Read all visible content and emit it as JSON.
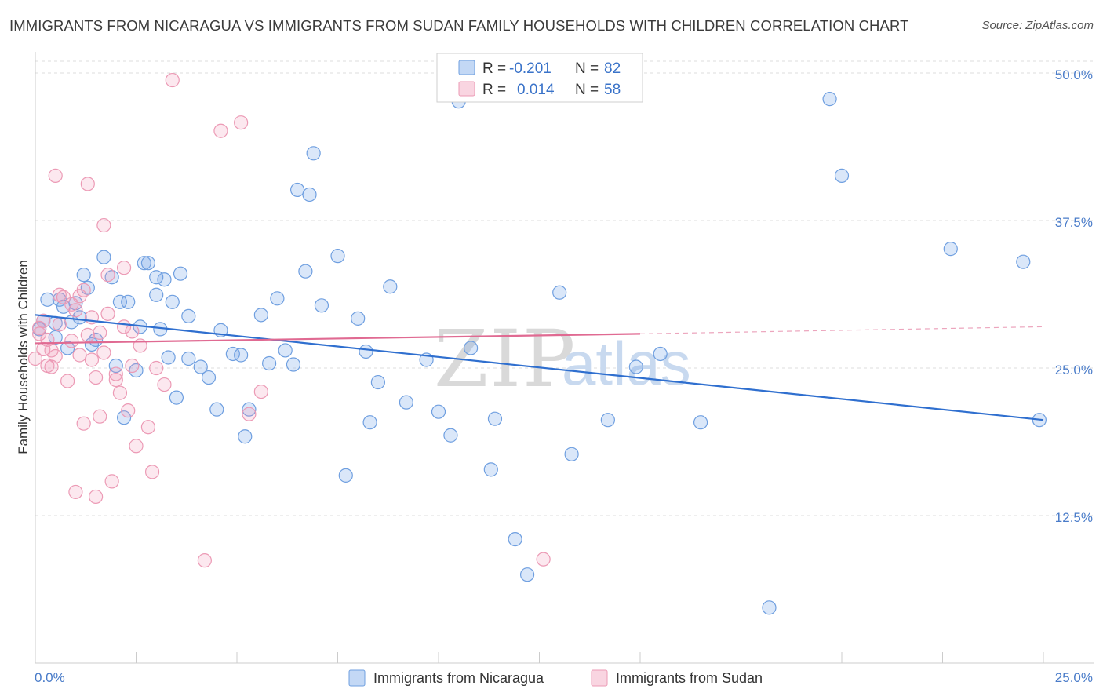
{
  "title": "IMMIGRANTS FROM NICARAGUA VS IMMIGRANTS FROM SUDAN FAMILY HOUSEHOLDS WITH CHILDREN CORRELATION CHART",
  "source": "Source: ZipAtlas.com",
  "watermark": {
    "zip": "ZIP",
    "atlas": "atlas"
  },
  "legend": {
    "r_label": "R =",
    "n_label": "N =",
    "rows": [
      {
        "r": "-0.201",
        "n": "82"
      },
      {
        "r": "0.014",
        "n": "58"
      }
    ]
  },
  "bottom_legend": [
    "Immigrants from Nicaragua",
    "Immigrants from Sudan"
  ],
  "colors": {
    "nicaragua_fill": "rgba(122,168,232,0.28)",
    "nicaragua_stroke": "#6f9fe0",
    "nicaragua_line": "#2f6fcf",
    "sudan_fill": "rgba(240,150,180,0.22)",
    "sudan_stroke": "#ec9ab5",
    "sudan_line": "#e06a92",
    "grid": "#dddddd",
    "tick_text": "#4a7cc9"
  },
  "chart_data": {
    "type": "scatter",
    "ylabel": "Family Households with Children",
    "xlabel": "",
    "x_tick_labels": [
      "0.0%",
      "25.0%"
    ],
    "y_tick_labels": [
      "12.5%",
      "25.0%",
      "37.5%",
      "50.0%"
    ],
    "y_ticks": [
      12.5,
      25.0,
      37.5,
      50.0
    ],
    "xlim": [
      0,
      25
    ],
    "ylim": [
      0,
      51
    ],
    "grid": "horizontal dashed",
    "series": [
      {
        "name": "Immigrants from Nicaragua",
        "trend": {
          "x": [
            0.0,
            25.0
          ],
          "y": [
            29.5,
            20.6
          ]
        },
        "points": [
          [
            0.1,
            28.3
          ],
          [
            0.2,
            29.0
          ],
          [
            0.3,
            30.8
          ],
          [
            0.5,
            27.6
          ],
          [
            0.6,
            30.8
          ],
          [
            0.7,
            30.2
          ],
          [
            0.5,
            28.8
          ],
          [
            0.8,
            26.7
          ],
          [
            0.9,
            28.9
          ],
          [
            1.0,
            30.5
          ],
          [
            1.1,
            29.3
          ],
          [
            1.2,
            32.9
          ],
          [
            1.3,
            31.8
          ],
          [
            1.4,
            27.0
          ],
          [
            1.5,
            27.4
          ],
          [
            1.7,
            34.4
          ],
          [
            1.9,
            32.7
          ],
          [
            2.1,
            30.6
          ],
          [
            2.3,
            30.6
          ],
          [
            2.6,
            28.5
          ],
          [
            2.7,
            33.9
          ],
          [
            2.8,
            33.9
          ],
          [
            3.0,
            31.2
          ],
          [
            3.2,
            32.5
          ],
          [
            3.4,
            30.6
          ],
          [
            3.6,
            33.0
          ],
          [
            3.8,
            29.4
          ],
          [
            3.0,
            32.7
          ],
          [
            2.0,
            25.2
          ],
          [
            2.2,
            20.8
          ],
          [
            2.5,
            24.8
          ],
          [
            3.1,
            28.3
          ],
          [
            3.3,
            25.9
          ],
          [
            3.5,
            22.5
          ],
          [
            3.8,
            25.8
          ],
          [
            4.1,
            25.1
          ],
          [
            4.3,
            24.2
          ],
          [
            4.5,
            21.5
          ],
          [
            4.6,
            28.2
          ],
          [
            4.9,
            26.2
          ],
          [
            5.1,
            26.1
          ],
          [
            5.2,
            19.2
          ],
          [
            5.3,
            21.5
          ],
          [
            5.6,
            29.5
          ],
          [
            5.8,
            25.4
          ],
          [
            6.0,
            30.9
          ],
          [
            6.2,
            26.5
          ],
          [
            6.4,
            25.3
          ],
          [
            6.7,
            33.2
          ],
          [
            6.8,
            39.7
          ],
          [
            7.1,
            30.3
          ],
          [
            7.5,
            34.5
          ],
          [
            7.7,
            15.9
          ],
          [
            8.0,
            29.2
          ],
          [
            8.2,
            26.4
          ],
          [
            8.3,
            20.4
          ],
          [
            8.5,
            23.8
          ],
          [
            8.8,
            31.9
          ],
          [
            9.2,
            22.1
          ],
          [
            9.7,
            25.7
          ],
          [
            10.0,
            21.3
          ],
          [
            10.3,
            19.3
          ],
          [
            10.5,
            47.6
          ],
          [
            10.8,
            26.7
          ],
          [
            11.3,
            16.4
          ],
          [
            11.4,
            20.7
          ],
          [
            11.9,
            10.5
          ],
          [
            12.2,
            7.5
          ],
          [
            13.0,
            31.4
          ],
          [
            13.3,
            17.7
          ],
          [
            14.2,
            20.6
          ],
          [
            14.9,
            25.1
          ],
          [
            15.5,
            26.2
          ],
          [
            16.5,
            20.4
          ],
          [
            18.2,
            4.7
          ],
          [
            19.7,
            47.8
          ],
          [
            20.0,
            41.3
          ],
          [
            22.7,
            35.1
          ],
          [
            24.5,
            34.0
          ],
          [
            24.9,
            20.6
          ],
          [
            6.5,
            40.1
          ],
          [
            6.9,
            43.2
          ]
        ]
      },
      {
        "name": "Immigrants from Sudan",
        "trend": {
          "x": [
            0.0,
            15.0
          ],
          "y": [
            27.1,
            27.9
          ]
        },
        "trend_dashed": {
          "x": [
            15.0,
            25.0
          ],
          "y": [
            27.9,
            28.5
          ]
        },
        "points": [
          [
            0.0,
            25.8
          ],
          [
            0.1,
            27.9
          ],
          [
            0.2,
            26.6
          ],
          [
            0.3,
            27.4
          ],
          [
            0.4,
            25.1
          ],
          [
            0.5,
            26.0
          ],
          [
            0.6,
            28.7
          ],
          [
            0.7,
            31.0
          ],
          [
            0.8,
            23.9
          ],
          [
            0.9,
            30.4
          ],
          [
            1.0,
            29.9
          ],
          [
            1.1,
            26.1
          ],
          [
            1.2,
            31.6
          ],
          [
            1.3,
            27.8
          ],
          [
            1.4,
            29.3
          ],
          [
            1.5,
            24.2
          ],
          [
            1.6,
            28.0
          ],
          [
            1.7,
            26.3
          ],
          [
            1.8,
            32.9
          ],
          [
            2.0,
            24.0
          ],
          [
            2.1,
            22.9
          ],
          [
            2.2,
            28.5
          ],
          [
            2.3,
            21.4
          ],
          [
            2.4,
            25.2
          ],
          [
            2.5,
            18.4
          ],
          [
            2.6,
            26.9
          ],
          [
            2.8,
            20.0
          ],
          [
            3.0,
            25.0
          ],
          [
            3.2,
            23.6
          ],
          [
            0.5,
            41.3
          ],
          [
            1.3,
            40.6
          ],
          [
            1.7,
            37.1
          ],
          [
            2.2,
            33.5
          ],
          [
            1.9,
            15.4
          ],
          [
            1.0,
            14.5
          ],
          [
            1.5,
            14.1
          ],
          [
            1.6,
            20.9
          ],
          [
            1.2,
            20.3
          ],
          [
            1.8,
            29.6
          ],
          [
            2.9,
            16.2
          ],
          [
            3.4,
            49.4
          ],
          [
            4.6,
            45.1
          ],
          [
            5.1,
            45.8
          ],
          [
            5.3,
            21.1
          ],
          [
            4.2,
            8.7
          ],
          [
            5.6,
            23.0
          ],
          [
            12.6,
            8.8
          ],
          [
            10.2,
            49.2
          ],
          [
            0.2,
            29.0
          ],
          [
            0.3,
            25.2
          ],
          [
            0.6,
            31.2
          ],
          [
            0.9,
            27.3
          ],
          [
            1.1,
            31.1
          ],
          [
            1.4,
            25.7
          ],
          [
            2.0,
            24.5
          ],
          [
            2.4,
            28.1
          ],
          [
            0.1,
            28.4
          ],
          [
            0.4,
            26.5
          ]
        ]
      }
    ]
  }
}
